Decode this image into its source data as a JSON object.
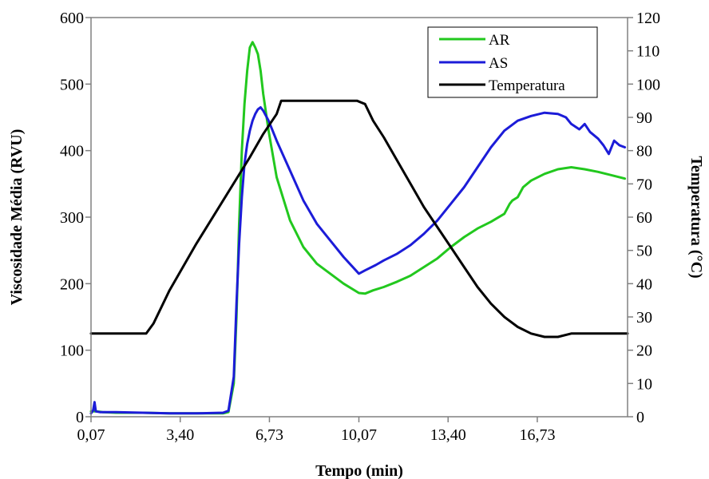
{
  "chart_data": {
    "type": "line",
    "xlabel": "Tempo (min)",
    "ylabel": "Viscosidade Média (RVU)",
    "y2label": "Temperatura (°C)",
    "xlim": [
      0.07,
      20.1
    ],
    "ylim": [
      0,
      600
    ],
    "y2lim": [
      0,
      120
    ],
    "x_ticks": [
      0.07,
      3.4,
      6.73,
      10.07,
      13.4,
      16.73
    ],
    "x_tick_labels": [
      "0,07",
      "3,40",
      "6,73",
      "10,07",
      "13,40",
      "16,73"
    ],
    "y_ticks": [
      0,
      100,
      200,
      300,
      400,
      500,
      600
    ],
    "y_tick_labels": [
      "0",
      "100",
      "200",
      "300",
      "400",
      "500",
      "600"
    ],
    "y2_ticks": [
      0,
      10,
      20,
      30,
      40,
      50,
      60,
      70,
      80,
      90,
      100,
      110,
      120
    ],
    "y2_tick_labels": [
      "0",
      "10",
      "20",
      "30",
      "40",
      "50",
      "60",
      "70",
      "80",
      "90",
      "100",
      "110",
      "120"
    ],
    "grid": false,
    "legend_position": "top-right",
    "series": [
      {
        "name": "AR",
        "axis": "left",
        "color": "#22c81e",
        "points": [
          [
            0.07,
            8
          ],
          [
            0.3,
            8
          ],
          [
            0.5,
            7
          ],
          [
            1.0,
            6
          ],
          [
            2.0,
            6
          ],
          [
            3.0,
            5
          ],
          [
            4.0,
            5
          ],
          [
            5.0,
            5
          ],
          [
            5.2,
            7
          ],
          [
            5.4,
            50
          ],
          [
            5.5,
            150
          ],
          [
            5.6,
            290
          ],
          [
            5.7,
            400
          ],
          [
            5.8,
            470
          ],
          [
            5.9,
            520
          ],
          [
            6.0,
            555
          ],
          [
            6.1,
            563
          ],
          [
            6.2,
            555
          ],
          [
            6.3,
            545
          ],
          [
            6.4,
            520
          ],
          [
            6.5,
            485
          ],
          [
            6.7,
            430
          ],
          [
            7.0,
            360
          ],
          [
            7.5,
            295
          ],
          [
            8.0,
            255
          ],
          [
            8.5,
            230
          ],
          [
            9.0,
            215
          ],
          [
            9.5,
            200
          ],
          [
            10.07,
            186
          ],
          [
            10.3,
            185
          ],
          [
            10.6,
            190
          ],
          [
            11.0,
            195
          ],
          [
            11.5,
            203
          ],
          [
            12.0,
            212
          ],
          [
            12.5,
            225
          ],
          [
            13.0,
            238
          ],
          [
            13.5,
            255
          ],
          [
            14.0,
            270
          ],
          [
            14.5,
            283
          ],
          [
            15.0,
            293
          ],
          [
            15.5,
            305
          ],
          [
            15.7,
            320
          ],
          [
            15.8,
            325
          ],
          [
            16.0,
            330
          ],
          [
            16.2,
            345
          ],
          [
            16.5,
            355
          ],
          [
            17.0,
            365
          ],
          [
            17.5,
            372
          ],
          [
            18.0,
            375
          ],
          [
            18.5,
            372
          ],
          [
            19.0,
            368
          ],
          [
            19.3,
            365
          ],
          [
            19.6,
            362
          ],
          [
            20.0,
            358
          ]
        ]
      },
      {
        "name": "AS",
        "axis": "left",
        "color": "#1c1cd8",
        "points": [
          [
            0.07,
            5
          ],
          [
            0.15,
            10
          ],
          [
            0.2,
            22
          ],
          [
            0.25,
            8
          ],
          [
            0.4,
            7
          ],
          [
            1.0,
            7
          ],
          [
            2.0,
            6
          ],
          [
            3.0,
            5
          ],
          [
            4.0,
            5
          ],
          [
            5.0,
            6
          ],
          [
            5.2,
            9
          ],
          [
            5.4,
            60
          ],
          [
            5.5,
            170
          ],
          [
            5.6,
            260
          ],
          [
            5.7,
            330
          ],
          [
            5.8,
            380
          ],
          [
            5.9,
            410
          ],
          [
            6.0,
            430
          ],
          [
            6.1,
            445
          ],
          [
            6.2,
            455
          ],
          [
            6.3,
            462
          ],
          [
            6.4,
            465
          ],
          [
            6.5,
            460
          ],
          [
            6.7,
            445
          ],
          [
            7.0,
            415
          ],
          [
            7.5,
            370
          ],
          [
            8.0,
            325
          ],
          [
            8.5,
            290
          ],
          [
            9.0,
            265
          ],
          [
            9.5,
            240
          ],
          [
            10.07,
            215
          ],
          [
            10.3,
            220
          ],
          [
            10.7,
            228
          ],
          [
            11.0,
            235
          ],
          [
            11.5,
            245
          ],
          [
            12.0,
            258
          ],
          [
            12.5,
            275
          ],
          [
            13.0,
            295
          ],
          [
            13.5,
            320
          ],
          [
            14.0,
            345
          ],
          [
            14.5,
            375
          ],
          [
            15.0,
            405
          ],
          [
            15.5,
            430
          ],
          [
            16.0,
            445
          ],
          [
            16.5,
            452
          ],
          [
            17.0,
            457
          ],
          [
            17.5,
            455
          ],
          [
            17.8,
            450
          ],
          [
            18.0,
            440
          ],
          [
            18.3,
            432
          ],
          [
            18.5,
            440
          ],
          [
            18.7,
            428
          ],
          [
            19.0,
            418
          ],
          [
            19.2,
            408
          ],
          [
            19.4,
            395
          ],
          [
            19.6,
            415
          ],
          [
            19.8,
            408
          ],
          [
            20.0,
            405
          ]
        ]
      },
      {
        "name": "Temperatura",
        "axis": "right",
        "color": "#000000",
        "points": [
          [
            0.07,
            25
          ],
          [
            2.13,
            25
          ],
          [
            2.4,
            28
          ],
          [
            3.0,
            38
          ],
          [
            4.0,
            52
          ],
          [
            5.0,
            65
          ],
          [
            6.0,
            78
          ],
          [
            6.5,
            85
          ],
          [
            7.0,
            91
          ],
          [
            7.17,
            95
          ],
          [
            8.0,
            95
          ],
          [
            9.0,
            95
          ],
          [
            10.0,
            95
          ],
          [
            10.3,
            94
          ],
          [
            10.6,
            89
          ],
          [
            11.0,
            84
          ],
          [
            11.5,
            77
          ],
          [
            12.0,
            70
          ],
          [
            12.5,
            63
          ],
          [
            13.0,
            57
          ],
          [
            13.5,
            51
          ],
          [
            14.0,
            45
          ],
          [
            14.5,
            39
          ],
          [
            15.0,
            34
          ],
          [
            15.5,
            30
          ],
          [
            16.0,
            27
          ],
          [
            16.5,
            25
          ],
          [
            17.0,
            24
          ],
          [
            17.5,
            24
          ],
          [
            18.0,
            25
          ],
          [
            18.5,
            25
          ],
          [
            19.0,
            25
          ],
          [
            19.5,
            25
          ],
          [
            20.1,
            25
          ]
        ]
      }
    ]
  }
}
